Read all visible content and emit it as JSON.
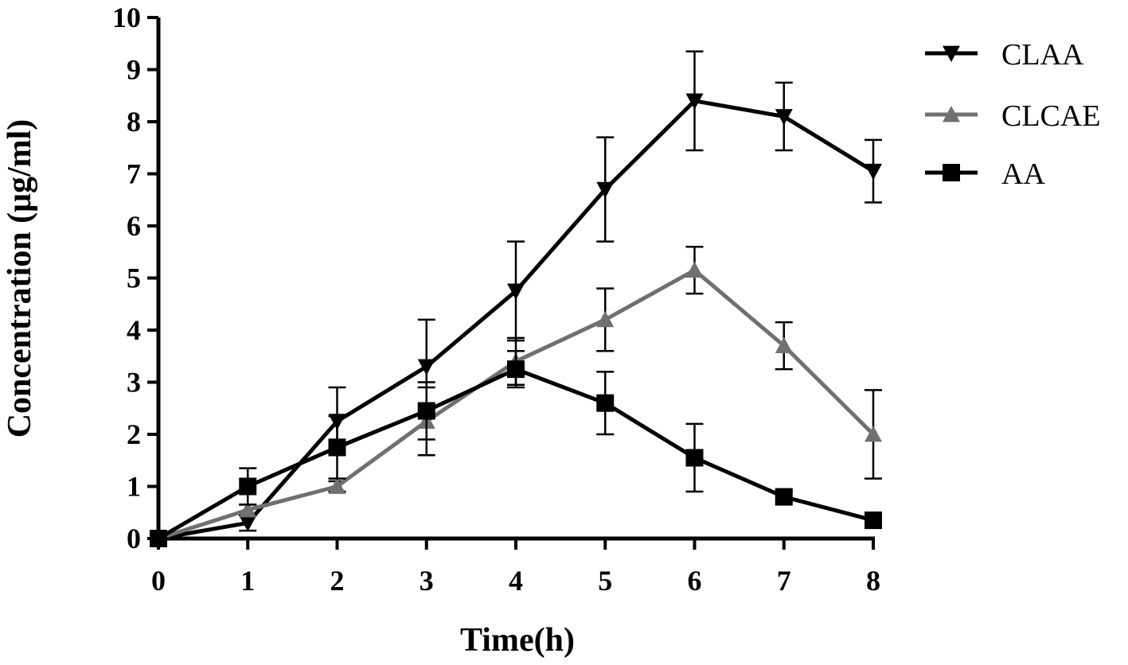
{
  "chart_data": {
    "type": "line",
    "xlabel": "Time(h)",
    "ylabel": "Concentration (μg/ml)",
    "xlim": [
      0,
      8
    ],
    "ylim": [
      0,
      10
    ],
    "xticks": [
      0,
      1,
      2,
      3,
      4,
      5,
      6,
      7,
      8
    ],
    "yticks": [
      0,
      1,
      2,
      3,
      4,
      5,
      6,
      7,
      8,
      9,
      10
    ],
    "grid": false,
    "legend_position": "top-right",
    "x": [
      0,
      1,
      2,
      3,
      4,
      5,
      6,
      7,
      8
    ],
    "series": [
      {
        "name": "CLAA",
        "marker": "triangle-down",
        "color": "#000000",
        "values": [
          0,
          0.3,
          2.25,
          3.3,
          4.75,
          6.7,
          8.4,
          8.1,
          7.05
        ],
        "error": [
          0,
          0.15,
          0.65,
          0.9,
          0.95,
          1.0,
          0.95,
          0.65,
          0.6
        ]
      },
      {
        "name": "CLCAE",
        "marker": "triangle-up",
        "color": "#707070",
        "values": [
          0,
          0.55,
          1.0,
          2.25,
          3.4,
          4.2,
          5.15,
          3.7,
          2.0
        ],
        "error": [
          0,
          0.1,
          0.1,
          0.65,
          0.45,
          0.6,
          0.45,
          0.45,
          0.85
        ]
      },
      {
        "name": "AA",
        "marker": "square",
        "color": "#000000",
        "values": [
          0,
          1.0,
          1.75,
          2.45,
          3.25,
          2.6,
          1.55,
          0.8,
          0.35
        ],
        "error": [
          0,
          0.35,
          0.6,
          0.55,
          0.35,
          0.6,
          0.65,
          0.1,
          0.05
        ]
      }
    ]
  }
}
